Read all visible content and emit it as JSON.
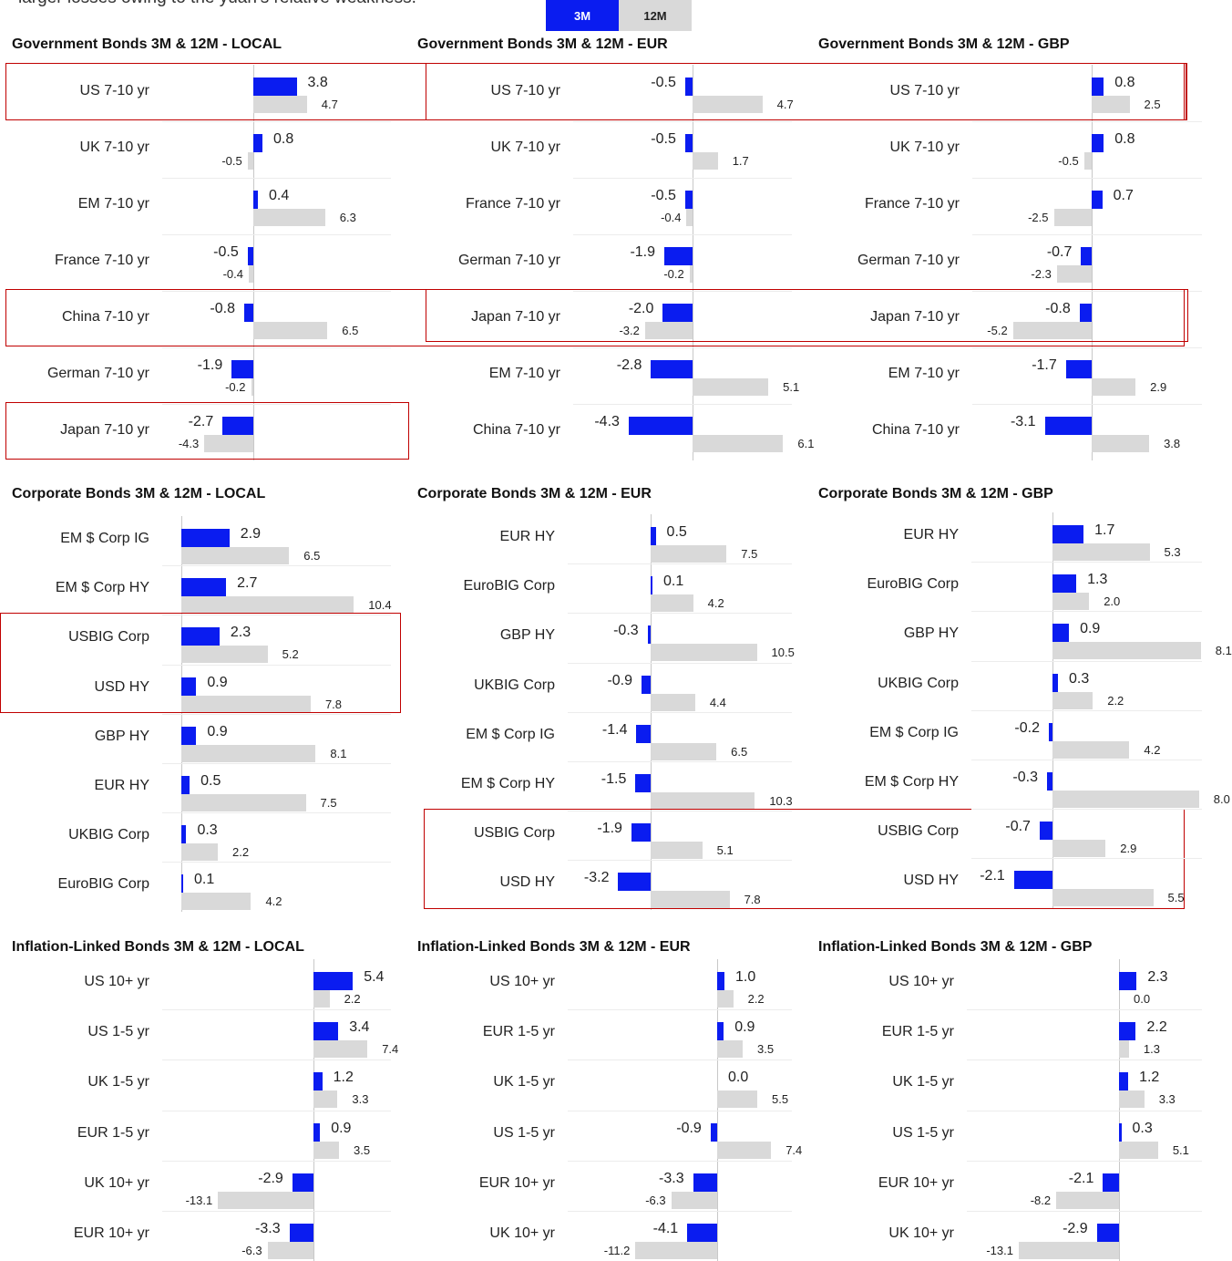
{
  "intro_text": "larger losses owing to the yuan’s relative weakness.",
  "legend": {
    "label_3m": "3M",
    "label_12m": "12M",
    "color_3m": "#0a1cf0",
    "color_12m": "#d9d9d9"
  },
  "chart_data": [
    {
      "type": "bar",
      "title": "Government Bonds 3M & 12M - LOCAL",
      "categories": [
        "US 7-10 yr",
        "UK 7-10 yr",
        "EM 7-10 yr",
        "France 7-10 yr",
        "China 7-10 yr",
        "German 7-10 yr",
        "Japan 7-10 yr"
      ],
      "series": [
        {
          "name": "3M",
          "values": [
            3.8,
            0.8,
            0.4,
            -0.5,
            -0.8,
            -1.9,
            -2.7
          ]
        },
        {
          "name": "12M",
          "values": [
            4.7,
            -0.5,
            6.3,
            -0.4,
            6.5,
            -0.2,
            -4.3
          ]
        }
      ],
      "highlighted": [
        "US 7-10 yr",
        "Japan 7-10 yr"
      ]
    },
    {
      "type": "bar",
      "title": "Government Bonds 3M & 12M - EUR",
      "categories": [
        "US 7-10 yr",
        "UK 7-10 yr",
        "France 7-10 yr",
        "German 7-10 yr",
        "Japan 7-10 yr",
        "EM 7-10 yr",
        "China 7-10 yr"
      ],
      "series": [
        {
          "name": "3M",
          "values": [
            -0.5,
            -0.5,
            -0.5,
            -1.9,
            -2.0,
            -2.8,
            -4.3
          ]
        },
        {
          "name": "12M",
          "values": [
            4.7,
            1.7,
            -0.4,
            -0.2,
            -3.2,
            5.1,
            6.1
          ]
        }
      ],
      "highlighted": [
        "US 7-10 yr",
        "Japan 7-10 yr"
      ]
    },
    {
      "type": "bar",
      "title": "Government Bonds 3M & 12M - GBP",
      "categories": [
        "US 7-10 yr",
        "UK 7-10 yr",
        "France 7-10 yr",
        "German 7-10 yr",
        "Japan 7-10 yr",
        "EM 7-10 yr",
        "China 7-10 yr"
      ],
      "series": [
        {
          "name": "3M",
          "values": [
            0.8,
            0.8,
            0.7,
            -0.7,
            -0.8,
            -1.7,
            -3.1
          ]
        },
        {
          "name": "12M",
          "values": [
            2.5,
            -0.5,
            -2.5,
            -2.3,
            -5.2,
            2.9,
            3.8
          ]
        }
      ],
      "highlighted": [
        "US 7-10 yr",
        "Japan 7-10 yr"
      ]
    },
    {
      "type": "bar",
      "title": "Corporate Bonds 3M & 12M - LOCAL",
      "categories": [
        "EM $ Corp IG",
        "EM $ Corp HY",
        "USBIG Corp",
        "USD HY",
        "GBP HY",
        "EUR HY",
        "UKBIG Corp",
        "EuroBIG Corp"
      ],
      "series": [
        {
          "name": "3M",
          "values": [
            2.9,
            2.7,
            2.3,
            0.9,
            0.9,
            0.5,
            0.3,
            0.1
          ]
        },
        {
          "name": "12M",
          "values": [
            6.5,
            10.4,
            5.2,
            7.8,
            8.1,
            7.5,
            2.2,
            4.2
          ]
        }
      ],
      "highlighted": [
        "USBIG Corp",
        "USD HY"
      ]
    },
    {
      "type": "bar",
      "title": "Corporate Bonds 3M & 12M - EUR",
      "categories": [
        "EUR HY",
        "EuroBIG Corp",
        "GBP HY",
        "UKBIG Corp",
        "EM $ Corp IG",
        "EM $ Corp HY",
        "USBIG Corp",
        "USD HY"
      ],
      "series": [
        {
          "name": "3M",
          "values": [
            0.5,
            0.1,
            -0.3,
            -0.9,
            -1.4,
            -1.5,
            -1.9,
            -3.2
          ]
        },
        {
          "name": "12M",
          "values": [
            7.5,
            4.2,
            10.5,
            4.4,
            6.5,
            10.3,
            5.1,
            7.8
          ]
        }
      ],
      "highlighted": [
        "USBIG Corp",
        "USD HY"
      ]
    },
    {
      "type": "bar",
      "title": "Corporate Bonds 3M & 12M - GBP",
      "categories": [
        "EUR HY",
        "EuroBIG Corp",
        "GBP HY",
        "UKBIG Corp",
        "EM $ Corp IG",
        "EM $ Corp HY",
        "USBIG Corp",
        "USD HY"
      ],
      "series": [
        {
          "name": "3M",
          "values": [
            1.7,
            1.3,
            0.9,
            0.3,
            -0.2,
            -0.3,
            -0.7,
            -2.1
          ]
        },
        {
          "name": "12M",
          "values": [
            5.3,
            2.0,
            8.1,
            2.2,
            4.2,
            8.0,
            2.9,
            5.5
          ]
        }
      ],
      "highlighted": [
        "USBIG Corp",
        "USD HY"
      ]
    },
    {
      "type": "bar",
      "title": "Inflation-Linked Bonds 3M & 12M - LOCAL",
      "categories": [
        "US 10+ yr",
        "US 1-5 yr",
        "UK 1-5 yr",
        "EUR 1-5 yr",
        "UK 10+ yr",
        "EUR 10+ yr"
      ],
      "series": [
        {
          "name": "3M",
          "values": [
            5.4,
            3.4,
            1.2,
            0.9,
            -2.9,
            -3.3
          ]
        },
        {
          "name": "12M",
          "values": [
            2.2,
            7.4,
            3.3,
            3.5,
            -13.1,
            -6.3
          ]
        }
      ],
      "highlighted": []
    },
    {
      "type": "bar",
      "title": "Inflation-Linked Bonds 3M & 12M - EUR",
      "categories": [
        "US 10+ yr",
        "EUR 1-5 yr",
        "UK 1-5 yr",
        "US 1-5 yr",
        "EUR 10+ yr",
        "UK 10+ yr"
      ],
      "series": [
        {
          "name": "3M",
          "values": [
            1.0,
            0.9,
            0.0,
            -0.9,
            -3.3,
            -4.1
          ]
        },
        {
          "name": "12M",
          "values": [
            2.2,
            3.5,
            5.5,
            7.4,
            -6.3,
            -11.2
          ]
        }
      ],
      "highlighted": []
    },
    {
      "type": "bar",
      "title": "Inflation-Linked Bonds 3M & 12M - GBP",
      "categories": [
        "US 10+ yr",
        "EUR 1-5 yr",
        "UK 1-5 yr",
        "US 1-5 yr",
        "EUR 10+ yr",
        "UK 10+ yr"
      ],
      "series": [
        {
          "name": "3M",
          "values": [
            2.3,
            2.2,
            1.2,
            0.3,
            -2.1,
            -2.9
          ]
        },
        {
          "name": "12M",
          "values": [
            0.0,
            1.3,
            3.3,
            5.1,
            -8.2,
            -13.1
          ]
        }
      ],
      "highlighted": []
    }
  ]
}
